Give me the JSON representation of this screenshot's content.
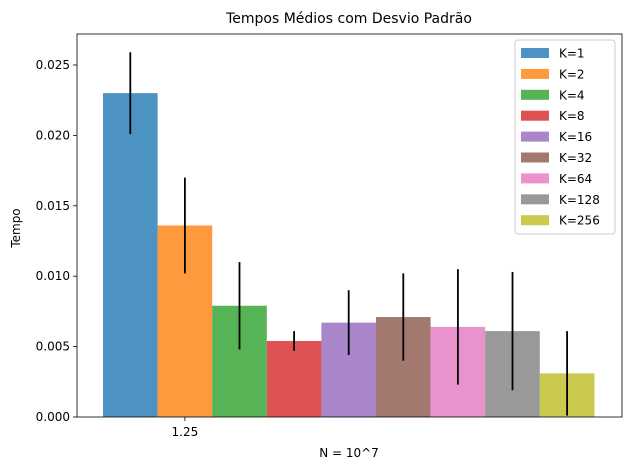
{
  "chart_data": {
    "type": "bar",
    "title": "Tempos Médios com Desvio Padrão",
    "xlabel": "N = 10^7",
    "ylabel": "Tempo",
    "x_ticks": [
      "1.25"
    ],
    "ylim": [
      0,
      0.0272
    ],
    "y_ticks": [
      {
        "value": 0.0,
        "label": "0.000"
      },
      {
        "value": 0.005,
        "label": "0.005"
      },
      {
        "value": 0.01,
        "label": "0.010"
      },
      {
        "value": 0.015,
        "label": "0.015"
      },
      {
        "value": 0.02,
        "label": "0.020"
      },
      {
        "value": 0.025,
        "label": "0.025"
      }
    ],
    "grid": false,
    "legend_position": "top-right",
    "series": [
      {
        "name": "K=1",
        "color": "#1f77b4",
        "value": 0.023,
        "error": 0.0029
      },
      {
        "name": "K=2",
        "color": "#ff7f0e",
        "value": 0.0136,
        "error": 0.0034
      },
      {
        "name": "K=4",
        "color": "#2ca02c",
        "value": 0.0079,
        "error": 0.0031
      },
      {
        "name": "K=8",
        "color": "#d62728",
        "value": 0.0054,
        "error": 0.0007
      },
      {
        "name": "K=16",
        "color": "#9467bd",
        "value": 0.0067,
        "error": 0.0023
      },
      {
        "name": "K=32",
        "color": "#8c564b",
        "value": 0.0071,
        "error": 0.0031
      },
      {
        "name": "K=64",
        "color": "#e377c2",
        "value": 0.0064,
        "error": 0.0041
      },
      {
        "name": "K=128",
        "color": "#7f7f7f",
        "value": 0.0061,
        "error": 0.0042
      },
      {
        "name": "K=256",
        "color": "#bcbd22",
        "value": 0.0031,
        "error": 0.003
      }
    ]
  }
}
